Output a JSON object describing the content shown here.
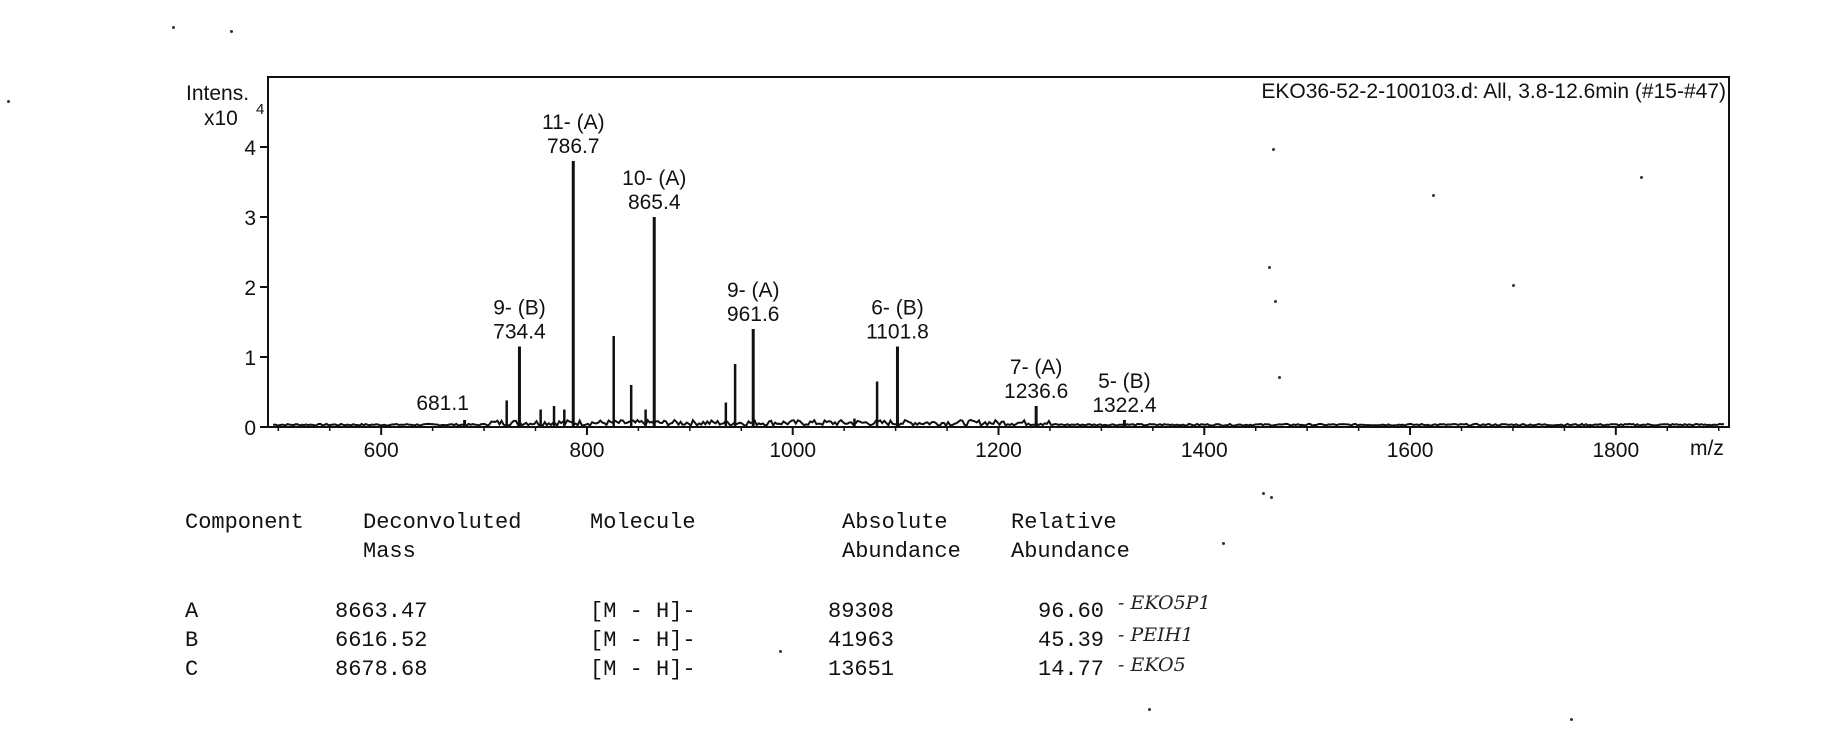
{
  "chart_data": {
    "type": "line",
    "title": "EKO36-52-2-100103.d: All, 3.8-12.6min (#15-#47)",
    "xlabel": "m/z",
    "ylabel": "Intens.",
    "y_multiplier": "x10",
    "y_exponent": "4",
    "xlim": [
      490,
      1910
    ],
    "ylim": [
      0,
      5.0
    ],
    "x_ticks": [
      600,
      800,
      1000,
      1200,
      1400,
      1600,
      1800
    ],
    "y_ticks": [
      0,
      1,
      2,
      3,
      4
    ],
    "peaks": [
      {
        "mz": 681.1,
        "intensity": 0.1,
        "charge": "",
        "mz_label": "681.1"
      },
      {
        "mz": 734.4,
        "intensity": 1.15,
        "charge": "9- (B)",
        "mz_label": "734.4"
      },
      {
        "mz": 786.7,
        "intensity": 3.8,
        "charge": "11- (A)",
        "mz_label": "786.7"
      },
      {
        "mz": 865.4,
        "intensity": 3.0,
        "charge": "10- (A)",
        "mz_label": "865.4"
      },
      {
        "mz": 961.6,
        "intensity": 1.4,
        "charge": "9- (A)",
        "mz_label": "961.6"
      },
      {
        "mz": 1101.8,
        "intensity": 1.15,
        "charge": "6- (B)",
        "mz_label": "1101.8"
      },
      {
        "mz": 1236.6,
        "intensity": 0.3,
        "charge": "7- (A)",
        "mz_label": "1236.6"
      },
      {
        "mz": 1322.4,
        "intensity": 0.1,
        "charge": "5- (B)",
        "mz_label": "1322.4"
      }
    ],
    "minor_peaks": [
      {
        "mz": 722,
        "intensity": 0.38
      },
      {
        "mz": 755,
        "intensity": 0.25
      },
      {
        "mz": 768,
        "intensity": 0.3
      },
      {
        "mz": 778,
        "intensity": 0.25
      },
      {
        "mz": 826,
        "intensity": 1.3
      },
      {
        "mz": 843,
        "intensity": 0.6
      },
      {
        "mz": 857,
        "intensity": 0.25
      },
      {
        "mz": 935,
        "intensity": 0.35
      },
      {
        "mz": 944,
        "intensity": 0.9
      },
      {
        "mz": 1082,
        "intensity": 0.65
      },
      {
        "mz": 1060,
        "intensity": 0.12
      }
    ]
  },
  "results_table": {
    "headers": [
      {
        "line1": "Component",
        "line2": ""
      },
      {
        "line1": "Deconvoluted",
        "line2": "Mass"
      },
      {
        "line1": "Molecule",
        "line2": ""
      },
      {
        "line1": "Absolute",
        "line2": "Abundance"
      },
      {
        "line1": "Relative",
        "line2": "Abundance"
      }
    ],
    "rows": [
      {
        "component": "A",
        "mass": "8663.47",
        "molecule": "[M - H]-",
        "absolute": "89308",
        "relative": "96.60"
      },
      {
        "component": "B",
        "mass": "6616.52",
        "molecule": "[M - H]-",
        "absolute": "41963",
        "relative": "45.39"
      },
      {
        "component": "C",
        "mass": "8678.68",
        "molecule": "[M - H]-",
        "absolute": "13651",
        "relative": "14.77"
      }
    ]
  },
  "handwritten_notes": [
    "- EKO5P1",
    "- PEIH1",
    "- EKO5"
  ]
}
